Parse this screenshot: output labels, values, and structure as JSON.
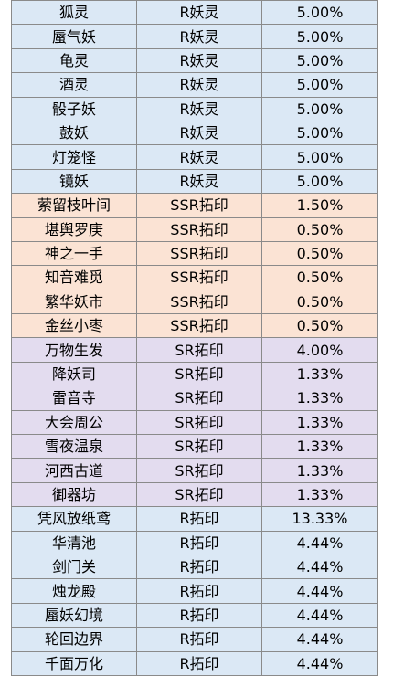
{
  "colors": {
    "blue": "#dbe8f5",
    "orange": "#fbe3d4",
    "purple": "#e3dcef"
  },
  "rows": [
    {
      "name": "狐灵",
      "type": "R妖灵",
      "rate": "5.00%",
      "group": "blue"
    },
    {
      "name": "蜃气妖",
      "type": "R妖灵",
      "rate": "5.00%",
      "group": "blue"
    },
    {
      "name": "龟灵",
      "type": "R妖灵",
      "rate": "5.00%",
      "group": "blue"
    },
    {
      "name": "酒灵",
      "type": "R妖灵",
      "rate": "5.00%",
      "group": "blue"
    },
    {
      "name": "骰子妖",
      "type": "R妖灵",
      "rate": "5.00%",
      "group": "blue"
    },
    {
      "name": "鼓妖",
      "type": "R妖灵",
      "rate": "5.00%",
      "group": "blue"
    },
    {
      "name": "灯笼怪",
      "type": "R妖灵",
      "rate": "5.00%",
      "group": "blue"
    },
    {
      "name": "镜妖",
      "type": "R妖灵",
      "rate": "5.00%",
      "group": "blue"
    },
    {
      "name": "萦留枝叶间",
      "type": "SSR拓印",
      "rate": "1.50%",
      "group": "orange"
    },
    {
      "name": "堪舆罗庚",
      "type": "SSR拓印",
      "rate": "0.50%",
      "group": "orange"
    },
    {
      "name": "神之一手",
      "type": "SSR拓印",
      "rate": "0.50%",
      "group": "orange"
    },
    {
      "name": "知音难觅",
      "type": "SSR拓印",
      "rate": "0.50%",
      "group": "orange"
    },
    {
      "name": "繁华妖市",
      "type": "SSR拓印",
      "rate": "0.50%",
      "group": "orange"
    },
    {
      "name": "金丝小枣",
      "type": "SSR拓印",
      "rate": "0.50%",
      "group": "orange"
    },
    {
      "name": "万物生发",
      "type": "SR拓印",
      "rate": "4.00%",
      "group": "purple"
    },
    {
      "name": "降妖司",
      "type": "SR拓印",
      "rate": "1.33%",
      "group": "purple"
    },
    {
      "name": "雷音寺",
      "type": "SR拓印",
      "rate": "1.33%",
      "group": "purple"
    },
    {
      "name": "大会周公",
      "type": "SR拓印",
      "rate": "1.33%",
      "group": "purple"
    },
    {
      "name": "雪夜温泉",
      "type": "SR拓印",
      "rate": "1.33%",
      "group": "purple"
    },
    {
      "name": "河西古道",
      "type": "SR拓印",
      "rate": "1.33%",
      "group": "purple"
    },
    {
      "name": "御器坊",
      "type": "SR拓印",
      "rate": "1.33%",
      "group": "purple"
    },
    {
      "name": "凭风放纸鸢",
      "type": "R拓印",
      "rate": "13.33%",
      "group": "blue"
    },
    {
      "name": "华清池",
      "type": "R拓印",
      "rate": "4.44%",
      "group": "blue"
    },
    {
      "name": "剑门关",
      "type": "R拓印",
      "rate": "4.44%",
      "group": "blue"
    },
    {
      "name": "烛龙殿",
      "type": "R拓印",
      "rate": "4.44%",
      "group": "blue"
    },
    {
      "name": "蜃妖幻境",
      "type": "R拓印",
      "rate": "4.44%",
      "group": "blue"
    },
    {
      "name": "轮回边界",
      "type": "R拓印",
      "rate": "4.44%",
      "group": "blue"
    },
    {
      "name": "千面万化",
      "type": "R拓印",
      "rate": "4.44%",
      "group": "blue"
    }
  ]
}
